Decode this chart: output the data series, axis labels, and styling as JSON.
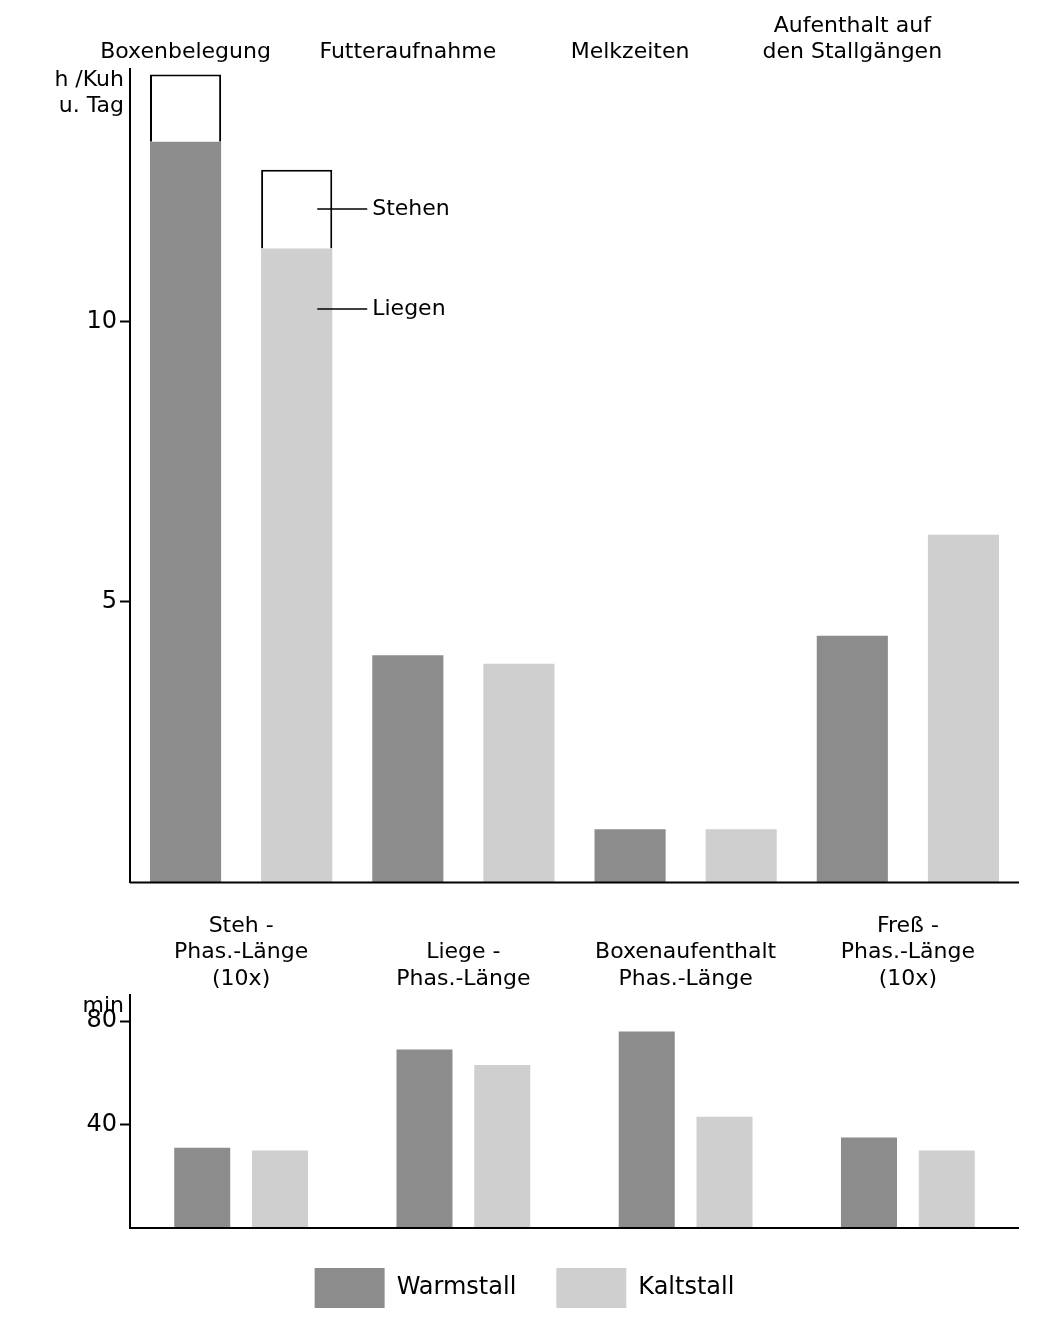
{
  "chart_data": [
    {
      "type": "bar",
      "ylabel": "h /Kuh\nu. Tag",
      "categories": [
        "Boxenbelegung",
        null,
        "Futteraufnahme",
        null,
        "Melkzeiten",
        null,
        "Aufenthalt auf\nden Stallgängen",
        null
      ],
      "stacked": true,
      "series": [
        {
          "color": "#8c8c8c",
          "values": [
            13.2,
            null,
            4.05,
            null,
            0.95,
            null,
            4.4,
            null
          ]
        },
        {
          "color": "#cfcfcf",
          "values": [
            null,
            11.3,
            null,
            3.9,
            null,
            0.95,
            null,
            6.2
          ]
        },
        {
          "name": "Stehen",
          "color": "#ffffff",
          "values": [
            1.2,
            1.4,
            null,
            null,
            null,
            null,
            null,
            null
          ]
        }
      ],
      "ylim": [
        0,
        14.5
      ],
      "yticks": [
        5,
        10
      ],
      "grid": false,
      "legend": false,
      "annotations": [
        "Liegen"
      ]
    },
    {
      "type": "bar",
      "ylabel": "min",
      "categories": [
        "Steh -\nPhas.-Länge\n(10x)",
        "Liege -\nPhas.-Länge",
        "Boxenaufenthalt\nPhas.-Länge",
        "Freß -\nPhas.-Länge\n(10x)"
      ],
      "series": [
        {
          "name": "Warmstall",
          "color": "#8c8c8c",
          "values": [
            31,
            69,
            76,
            35
          ]
        },
        {
          "name": "Kaltstall",
          "color": "#cfcfcf",
          "values": [
            30,
            63,
            43,
            30
          ]
        }
      ],
      "ylim": [
        0,
        90
      ],
      "yticks": [
        40,
        80
      ],
      "grid": false,
      "legend": "bottom"
    }
  ]
}
